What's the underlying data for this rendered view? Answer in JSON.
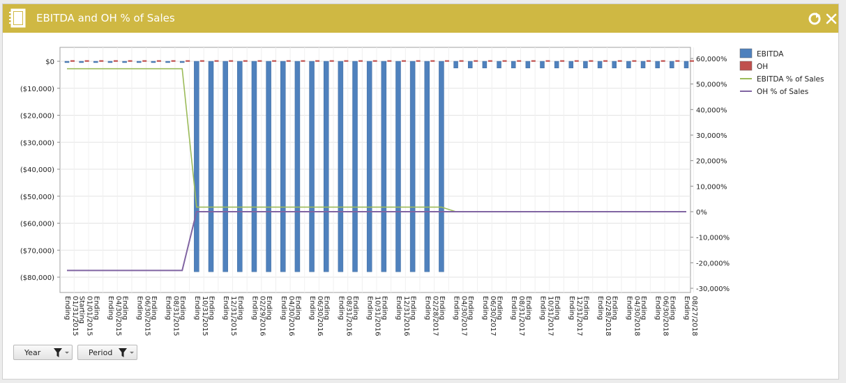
{
  "window": {
    "title": "EBITDA and OH % of Sales",
    "title_icon": "notebook-icon",
    "refresh_icon": "refresh-icon",
    "close_icon": "close-icon"
  },
  "filters": [
    {
      "label": "Year",
      "icon": "filter-icon"
    },
    {
      "label": "Period",
      "icon": "filter-icon"
    }
  ],
  "colors": {
    "ebitda": "#4f81bd",
    "oh": "#c0504d",
    "ebitda_pct": "#9bbb59",
    "oh_pct": "#8064a2",
    "titlebar": "#cfb843"
  },
  "chart_data": {
    "type": "bar",
    "categories": [
      [
        "Ending",
        "01/31/2015"
      ],
      [
        "Starting",
        "01/01/2015"
      ],
      [
        "Ending",
        ""
      ],
      [
        "Ending",
        "04/30/2015"
      ],
      [
        "Ending",
        ""
      ],
      [
        "Ending",
        "06/30/2015"
      ],
      [
        "Ending",
        ""
      ],
      [
        "Ending",
        "08/31/2015"
      ],
      [
        "Ending",
        ""
      ],
      [
        "Ending",
        "10/31/2015"
      ],
      [
        "Ending",
        ""
      ],
      [
        "Ending",
        "12/31/2015"
      ],
      [
        "Ending",
        ""
      ],
      [
        "Ending",
        "02/29/2016"
      ],
      [
        "Ending",
        ""
      ],
      [
        "Ending",
        "04/30/2016"
      ],
      [
        "Ending",
        ""
      ],
      [
        "Ending",
        "06/30/2016"
      ],
      [
        "Ending",
        ""
      ],
      [
        "Ending",
        "08/31/2016"
      ],
      [
        "Ending",
        ""
      ],
      [
        "Ending",
        "10/31/2016"
      ],
      [
        "Ending",
        ""
      ],
      [
        "Ending",
        "12/31/2016"
      ],
      [
        "Ending",
        ""
      ],
      [
        "Ending",
        "02/28/2017"
      ],
      [
        "Ending",
        ""
      ],
      [
        "Ending",
        "04/30/2017"
      ],
      [
        "Ending",
        ""
      ],
      [
        "Ending",
        "06/30/2017"
      ],
      [
        "Ending",
        ""
      ],
      [
        "Ending",
        "08/31/2017"
      ],
      [
        "Ending",
        ""
      ],
      [
        "Ending",
        "10/31/2017"
      ],
      [
        "Ending",
        ""
      ],
      [
        "Ending",
        "12/31/2017"
      ],
      [
        "Ending",
        ""
      ],
      [
        "Ending",
        "02/28/2018"
      ],
      [
        "Ending",
        ""
      ],
      [
        "Ending",
        "04/30/2018"
      ],
      [
        "Ending",
        ""
      ],
      [
        "Ending",
        "06/30/2018"
      ],
      [
        "Ending",
        ""
      ],
      [
        "Ending",
        "08/27/2018"
      ]
    ],
    "series": [
      {
        "name": "EBITDA",
        "type": "bar",
        "axis": "left",
        "values": [
          -500,
          -500,
          -500,
          -500,
          -500,
          -500,
          -500,
          -500,
          -500,
          -78000,
          -78000,
          -78000,
          -78000,
          -78000,
          -78000,
          -78000,
          -78000,
          -78000,
          -78000,
          -78000,
          -78000,
          -78000,
          -78000,
          -78000,
          -78000,
          -78000,
          -78000,
          -2500,
          -2500,
          -2500,
          -2500,
          -2500,
          -2500,
          -2500,
          -2500,
          -2500,
          -2500,
          -2500,
          -2500,
          -2500,
          -2500,
          -2500,
          -2500,
          -2500
        ]
      },
      {
        "name": "OH",
        "type": "bar",
        "axis": "left",
        "values": [
          0,
          0,
          0,
          0,
          0,
          0,
          0,
          0,
          0,
          0,
          0,
          0,
          0,
          0,
          0,
          0,
          0,
          0,
          0,
          0,
          0,
          0,
          0,
          0,
          0,
          0,
          0,
          0,
          0,
          0,
          0,
          0,
          0,
          0,
          0,
          0,
          0,
          0,
          0,
          0,
          0,
          0,
          0,
          0
        ]
      },
      {
        "name": "EBITDA % of Sales",
        "type": "line",
        "axis": "right",
        "values": [
          56000,
          56000,
          56000,
          56000,
          56000,
          56000,
          56000,
          56000,
          56000,
          1800,
          1800,
          1800,
          1800,
          1800,
          1800,
          1800,
          1800,
          1800,
          1800,
          1800,
          1800,
          1800,
          1800,
          1800,
          1800,
          1800,
          1800,
          0,
          0,
          0,
          0,
          0,
          0,
          0,
          0,
          0,
          0,
          0,
          0,
          0,
          0,
          0,
          0,
          0
        ]
      },
      {
        "name": "OH % of Sales",
        "type": "line",
        "axis": "right",
        "values": [
          -23000,
          -23000,
          -23000,
          -23000,
          -23000,
          -23000,
          -23000,
          -23000,
          -23000,
          0,
          0,
          0,
          0,
          0,
          0,
          0,
          0,
          0,
          0,
          0,
          0,
          0,
          0,
          0,
          0,
          0,
          0,
          0,
          0,
          0,
          0,
          0,
          0,
          0,
          0,
          0,
          0,
          0,
          0,
          0,
          0,
          0,
          0,
          0
        ]
      }
    ],
    "y_left": {
      "ylim": [
        -85000,
        6000
      ],
      "ticks": [
        0,
        -10000,
        -20000,
        -30000,
        -40000,
        -50000,
        -60000,
        -70000,
        -80000
      ],
      "tick_labels": [
        "$0",
        "($10,000)",
        "($20,000)",
        "($30,000)",
        "($40,000)",
        "($50,000)",
        "($60,000)",
        "($70,000)",
        "($80,000)"
      ]
    },
    "y_right": {
      "ylim": [
        -30000,
        60000
      ],
      "ticks": [
        60000,
        50000,
        40000,
        30000,
        20000,
        10000,
        0,
        -10000,
        -20000,
        -30000
      ],
      "tick_labels": [
        "60,000%",
        "50,000%",
        "40,000%",
        "30,000%",
        "20,000%",
        "10,000%",
        "0%",
        "-10,000%",
        "-20,000%",
        "-30,000%"
      ]
    },
    "grid": true,
    "legend": "right"
  }
}
